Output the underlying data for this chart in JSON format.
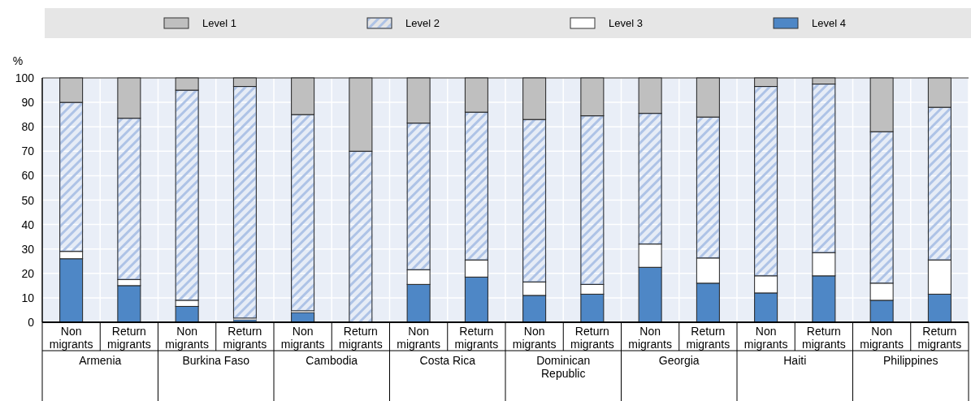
{
  "chart_data": {
    "type": "bar",
    "stacked": true,
    "ylabel": "%",
    "categories": [
      "Non migrants",
      "Return migrants",
      "Non migrants",
      "Return migrants",
      "Non migrants",
      "Return migrants",
      "Non migrants",
      "Return migrants",
      "Non migrants",
      "Return migrants",
      "Non migrants",
      "Return migrants",
      "Non migrants",
      "Return migrants",
      "Non migrants",
      "Return migrants"
    ],
    "annotations": [
      "Armenia",
      "Burkina Faso",
      "Cambodia",
      "Costa Rica",
      "Dominican Republic",
      "Georgia",
      "Haiti",
      "Philippines"
    ],
    "series": [
      {
        "name": "Level 4",
        "color": "#4e87c6",
        "values": [
          26,
          15,
          6.5,
          1,
          4,
          0,
          15.5,
          18.5,
          11,
          11.5,
          22.5,
          16,
          12,
          19,
          9,
          11.5
        ]
      },
      {
        "name": "Level 3",
        "color": "#ffffff",
        "values": [
          3,
          2.5,
          2.5,
          0.7,
          0.7,
          0,
          6,
          7,
          5.5,
          4,
          9.5,
          10.3,
          7,
          9.5,
          7,
          14
        ]
      },
      {
        "name": "Level 2",
        "color": "#aec3e6",
        "values": [
          61,
          66,
          86,
          94.8,
          80.3,
          70,
          60,
          60.5,
          66.5,
          69,
          53.5,
          57.7,
          77.5,
          69,
          62,
          62.5
        ]
      },
      {
        "name": "Level 1",
        "color": "#bfbfbf",
        "values": [
          10,
          16.5,
          5,
          3.5,
          15,
          30,
          18.5,
          14,
          17,
          15.5,
          14.5,
          16,
          3.5,
          2.5,
          22,
          12
        ]
      }
    ],
    "ylim": [
      0,
      100
    ],
    "yticks": [
      0,
      10,
      20,
      30,
      40,
      50,
      60,
      70,
      80,
      90,
      100
    ],
    "grid": true,
    "legend": "top"
  }
}
